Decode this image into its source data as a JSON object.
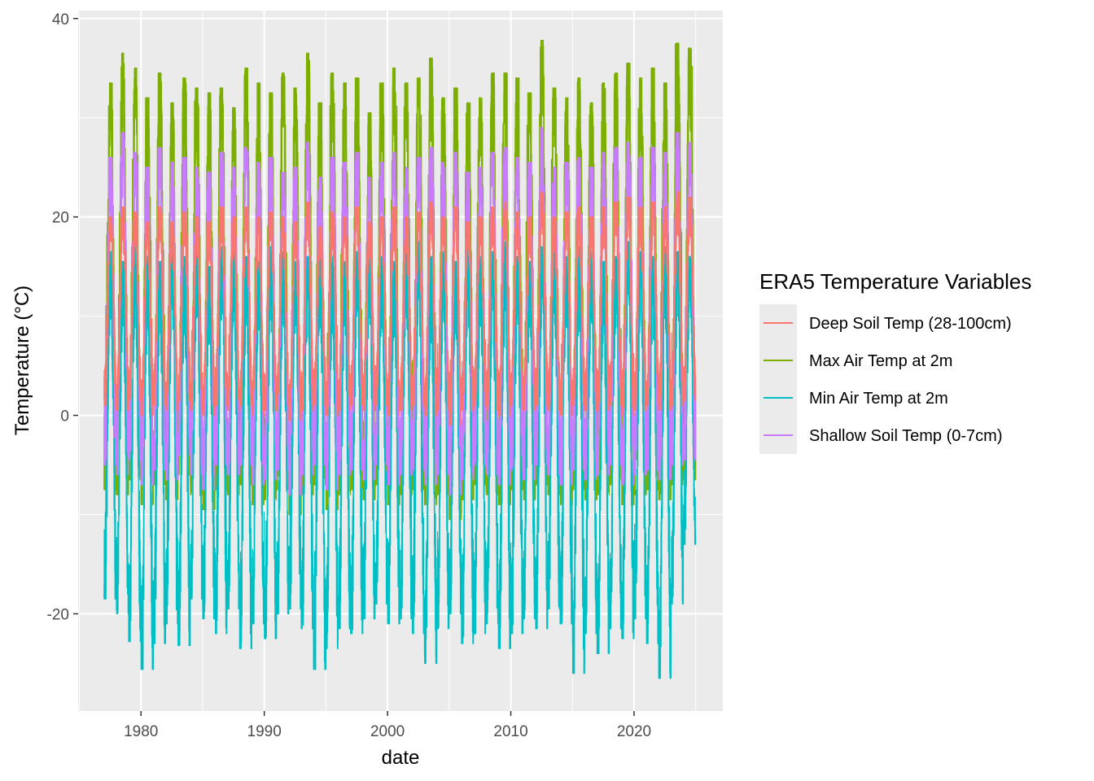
{
  "chart_data": {
    "type": "line",
    "xlabel": "date",
    "ylabel": "Temperature (°C)",
    "xlim": [
      1974.9,
      2027.2
    ],
    "ylim": [
      -29.8,
      40.8
    ],
    "x_ticks": [
      1980,
      1990,
      2000,
      2010,
      2020
    ],
    "y_ticks": [
      -20,
      0,
      20,
      40
    ],
    "x_minor_ticks": [
      1975,
      1985,
      1995,
      2005,
      2015,
      2025
    ],
    "y_minor_ticks": [
      -10,
      10,
      30
    ],
    "x_range": [
      1977.0,
      2025.0
    ],
    "grid": true,
    "legend": {
      "title": "ERA5 Temperature Variables",
      "placement": "right"
    },
    "series": [
      {
        "name": "Max Air Temp at 2m",
        "color": "#7CAE00",
        "summer_peaks": [
          33.5,
          36.5,
          35.0,
          32.0,
          34.5,
          31.5,
          34.0,
          33.0,
          32.5,
          33.0,
          31.0,
          35.0,
          33.5,
          32.5,
          34.5,
          33.0,
          36.5,
          31.5,
          34.5,
          33.5,
          34.0,
          30.5,
          33.5,
          35.0,
          33.5,
          34.0,
          36.0,
          32.0,
          33.0,
          31.5,
          32.0,
          34.5,
          34.5,
          34.0,
          32.5,
          37.8,
          33.0,
          32.0,
          34.0,
          31.5,
          33.5,
          34.5,
          35.5,
          34.0,
          35.0,
          33.5,
          37.5,
          37.0
        ],
        "winter_lows": [
          -7.5,
          -8.0,
          -6.5,
          -9.0,
          -7.0,
          -8.5,
          -6.0,
          -8.0,
          -9.5,
          -7.5,
          -8.0,
          -7.0,
          -9.0,
          -8.5,
          -7.5,
          -10.0,
          -8.0,
          -7.0,
          -9.5,
          -8.0,
          -7.5,
          -8.5,
          -7.0,
          -9.0,
          -8.0,
          -7.5,
          -9.0,
          -8.0,
          -10.5,
          -8.5,
          -7.0,
          -8.0,
          -9.0,
          -7.5,
          -8.5,
          -7.0,
          -8.0,
          -9.0,
          -7.5,
          -8.5,
          -8.0,
          -7.0,
          -9.0,
          -8.0,
          -7.5,
          -8.5,
          -7.0,
          -6.5
        ]
      },
      {
        "name": "Min Air Temp at 2m",
        "color": "#00BFC4",
        "summer_peaks": [
          16.5,
          15.5,
          17.0,
          16.0,
          15.5,
          17.5,
          16.0,
          16.5,
          15.0,
          17.0,
          16.5,
          16.0,
          15.5,
          17.0,
          16.5,
          15.5,
          16.0,
          17.5,
          16.0,
          15.5,
          16.5,
          17.0,
          16.0,
          15.5,
          16.5,
          17.5,
          16.0,
          16.5,
          15.5,
          17.0,
          16.0,
          16.5,
          17.5,
          16.0,
          15.5,
          17.0,
          16.5,
          16.0,
          17.0,
          16.5,
          15.5,
          16.0,
          17.5,
          16.5,
          16.0,
          17.0,
          16.5,
          16.0
        ],
        "winter_lows": [
          -18.5,
          -20.0,
          -22.8,
          -25.6,
          -23.0,
          -21.0,
          -23.2,
          -18.5,
          -20.5,
          -22.0,
          -19.5,
          -23.5,
          -21.0,
          -22.5,
          -20.0,
          -19.5,
          -21.5,
          -25.6,
          -23.5,
          -21.5,
          -22.0,
          -20.5,
          -19.0,
          -21.0,
          -20.5,
          -22.0,
          -25.0,
          -21.5,
          -20.0,
          -23.0,
          -22.0,
          -21.0,
          -23.5,
          -22.0,
          -20.5,
          -21.5,
          -19.5,
          -21.0,
          -26.0,
          -22.0,
          -24.0,
          -21.5,
          -22.5,
          -20.5,
          -23.0,
          -26.5,
          -19.0,
          -13.0
        ]
      },
      {
        "name": "Shallow Soil Temp (0-7cm)",
        "color": "#C77CFF",
        "summer_peaks": [
          26.0,
          28.5,
          26.5,
          25.0,
          27.0,
          25.5,
          26.0,
          25.0,
          24.5,
          26.5,
          25.0,
          27.0,
          25.5,
          26.0,
          24.5,
          25.0,
          27.5,
          24.0,
          26.0,
          25.5,
          26.5,
          24.0,
          25.5,
          26.5,
          25.0,
          26.0,
          27.0,
          25.5,
          26.5,
          24.5,
          25.0,
          26.5,
          27.0,
          26.0,
          25.5,
          29.0,
          25.0,
          25.5,
          26.0,
          25.0,
          26.5,
          27.0,
          27.5,
          26.0,
          27.0,
          26.5,
          28.5,
          27.5
        ],
        "winter_lows": [
          -5.0,
          -6.0,
          -4.5,
          -7.0,
          -5.5,
          -6.5,
          -4.0,
          -6.0,
          -7.5,
          -5.0,
          -6.0,
          -5.0,
          -7.0,
          -6.5,
          -5.5,
          -8.0,
          -6.0,
          -5.0,
          -7.5,
          -6.0,
          -5.5,
          -6.5,
          -5.0,
          -7.0,
          -6.0,
          -5.5,
          -7.0,
          -6.0,
          -8.0,
          -6.5,
          -5.0,
          -6.0,
          -7.0,
          -5.5,
          -6.5,
          -5.0,
          -6.0,
          -7.0,
          -5.5,
          -6.5,
          -6.0,
          -5.0,
          -7.0,
          -6.0,
          -5.5,
          -6.5,
          -5.0,
          -4.5
        ]
      },
      {
        "name": "Deep Soil Temp (28-100cm)",
        "color": "#F8766D",
        "summer_peaks": [
          20.0,
          21.0,
          20.5,
          19.5,
          21.0,
          19.5,
          20.5,
          20.0,
          19.5,
          21.0,
          20.0,
          21.0,
          20.0,
          20.5,
          20.0,
          19.5,
          21.5,
          19.0,
          20.5,
          20.0,
          21.0,
          19.5,
          20.0,
          21.0,
          20.0,
          20.5,
          21.5,
          20.0,
          21.0,
          19.5,
          20.0,
          21.0,
          21.5,
          20.5,
          20.0,
          22.5,
          20.0,
          20.5,
          21.0,
          20.0,
          21.0,
          21.5,
          22.0,
          21.0,
          21.5,
          21.0,
          22.5,
          22.0
        ],
        "winter_lows": [
          1.0,
          0.5,
          1.5,
          0.0,
          1.0,
          0.5,
          1.5,
          0.5,
          0.0,
          1.0,
          0.5,
          1.0,
          0.0,
          0.5,
          1.0,
          -0.5,
          0.5,
          1.0,
          0.0,
          0.5,
          1.0,
          0.5,
          1.0,
          0.0,
          0.5,
          1.0,
          0.0,
          0.5,
          -1.0,
          0.5,
          1.0,
          0.5,
          0.0,
          1.0,
          0.5,
          1.0,
          0.5,
          0.0,
          1.0,
          0.5,
          0.5,
          1.0,
          0.0,
          0.5,
          1.0,
          0.5,
          1.0,
          1.5
        ]
      }
    ]
  }
}
